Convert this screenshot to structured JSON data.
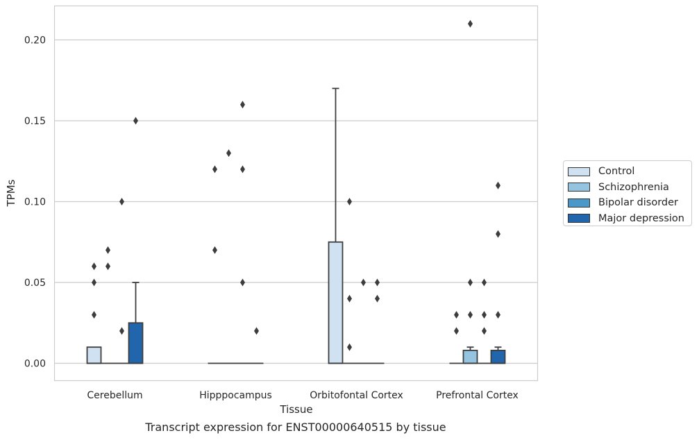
{
  "chart_data": {
    "type": "box",
    "xlabel": "Tissue",
    "ylabel": "TPMs",
    "ylim": [
      -0.01,
      0.22
    ],
    "yticks": [
      "0.00",
      "0.05",
      "0.10",
      "0.15",
      "0.20"
    ],
    "ytick_values": [
      0,
      0.05,
      0.1,
      0.15,
      0.2
    ],
    "grid": "horizontal",
    "legend_position": "right",
    "categories": [
      "Cerebellum",
      "Hipppocampus",
      "Orbitofontal Cortex",
      "Prefrontal Cortex"
    ],
    "series": [
      {
        "name": "Control",
        "color": "#d0e1f2",
        "boxes": [
          {
            "q1": 0,
            "median": 0,
            "q3": 0.01,
            "whisker_low": 0,
            "whisker_high": 0.01,
            "outliers": [
              0.03,
              0.05,
              0.06
            ]
          },
          {
            "q1": 0,
            "median": 0,
            "q3": 0,
            "whisker_low": 0,
            "whisker_high": 0,
            "outliers": [
              0.07,
              0.12
            ]
          },
          {
            "q1": 0,
            "median": 0,
            "q3": 0.075,
            "whisker_low": 0,
            "whisker_high": 0.17,
            "outliers": []
          },
          {
            "q1": 0,
            "median": 0,
            "q3": 0,
            "whisker_low": 0,
            "whisker_high": 0,
            "outliers": [
              0.02,
              0.03
            ]
          }
        ]
      },
      {
        "name": "Schizophrenia",
        "color": "#94c4df",
        "boxes": [
          {
            "q1": 0,
            "median": 0,
            "q3": 0,
            "whisker_low": 0,
            "whisker_high": 0,
            "outliers": [
              0.06,
              0.07
            ]
          },
          {
            "q1": 0,
            "median": 0,
            "q3": 0,
            "whisker_low": 0,
            "whisker_high": 0,
            "outliers": [
              0.13
            ]
          },
          {
            "q1": 0,
            "median": 0,
            "q3": 0,
            "whisker_low": 0,
            "whisker_high": 0,
            "outliers": [
              0.01,
              0.04,
              0.1
            ]
          },
          {
            "q1": 0,
            "median": 0,
            "q3": 0.008,
            "whisker_low": 0,
            "whisker_high": 0.01,
            "outliers": [
              0.03,
              0.05,
              0.21
            ]
          }
        ]
      },
      {
        "name": "Bipolar disorder",
        "color": "#4a98c9",
        "boxes": [
          {
            "q1": 0,
            "median": 0,
            "q3": 0,
            "whisker_low": 0,
            "whisker_high": 0,
            "outliers": [
              0.02,
              0.1
            ]
          },
          {
            "q1": 0,
            "median": 0,
            "q3": 0,
            "whisker_low": 0,
            "whisker_high": 0,
            "outliers": [
              0.05,
              0.12,
              0.16
            ]
          },
          {
            "q1": 0,
            "median": 0,
            "q3": 0,
            "whisker_low": 0,
            "whisker_high": 0,
            "outliers": [
              0.05
            ]
          },
          {
            "q1": 0,
            "median": 0,
            "q3": 0,
            "whisker_low": 0,
            "whisker_high": 0,
            "outliers": [
              0.02,
              0.03,
              0.05
            ]
          }
        ]
      },
      {
        "name": "Major depression",
        "color": "#2166ac",
        "boxes": [
          {
            "q1": 0,
            "median": 0,
            "q3": 0.025,
            "whisker_low": 0,
            "whisker_high": 0.05,
            "outliers": [
              0.15
            ]
          },
          {
            "q1": 0,
            "median": 0,
            "q3": 0,
            "whisker_low": 0,
            "whisker_high": 0,
            "outliers": [
              0.02
            ]
          },
          {
            "q1": 0,
            "median": 0,
            "q3": 0,
            "whisker_low": 0,
            "whisker_high": 0,
            "outliers": [
              0.04,
              0.05
            ]
          },
          {
            "q1": 0,
            "median": 0,
            "q3": 0.008,
            "whisker_low": 0,
            "whisker_high": 0.01,
            "outliers": [
              0.03,
              0.08,
              0.11
            ]
          }
        ]
      }
    ]
  },
  "caption": "Transcript expression for ENST00000640515 by tissue"
}
